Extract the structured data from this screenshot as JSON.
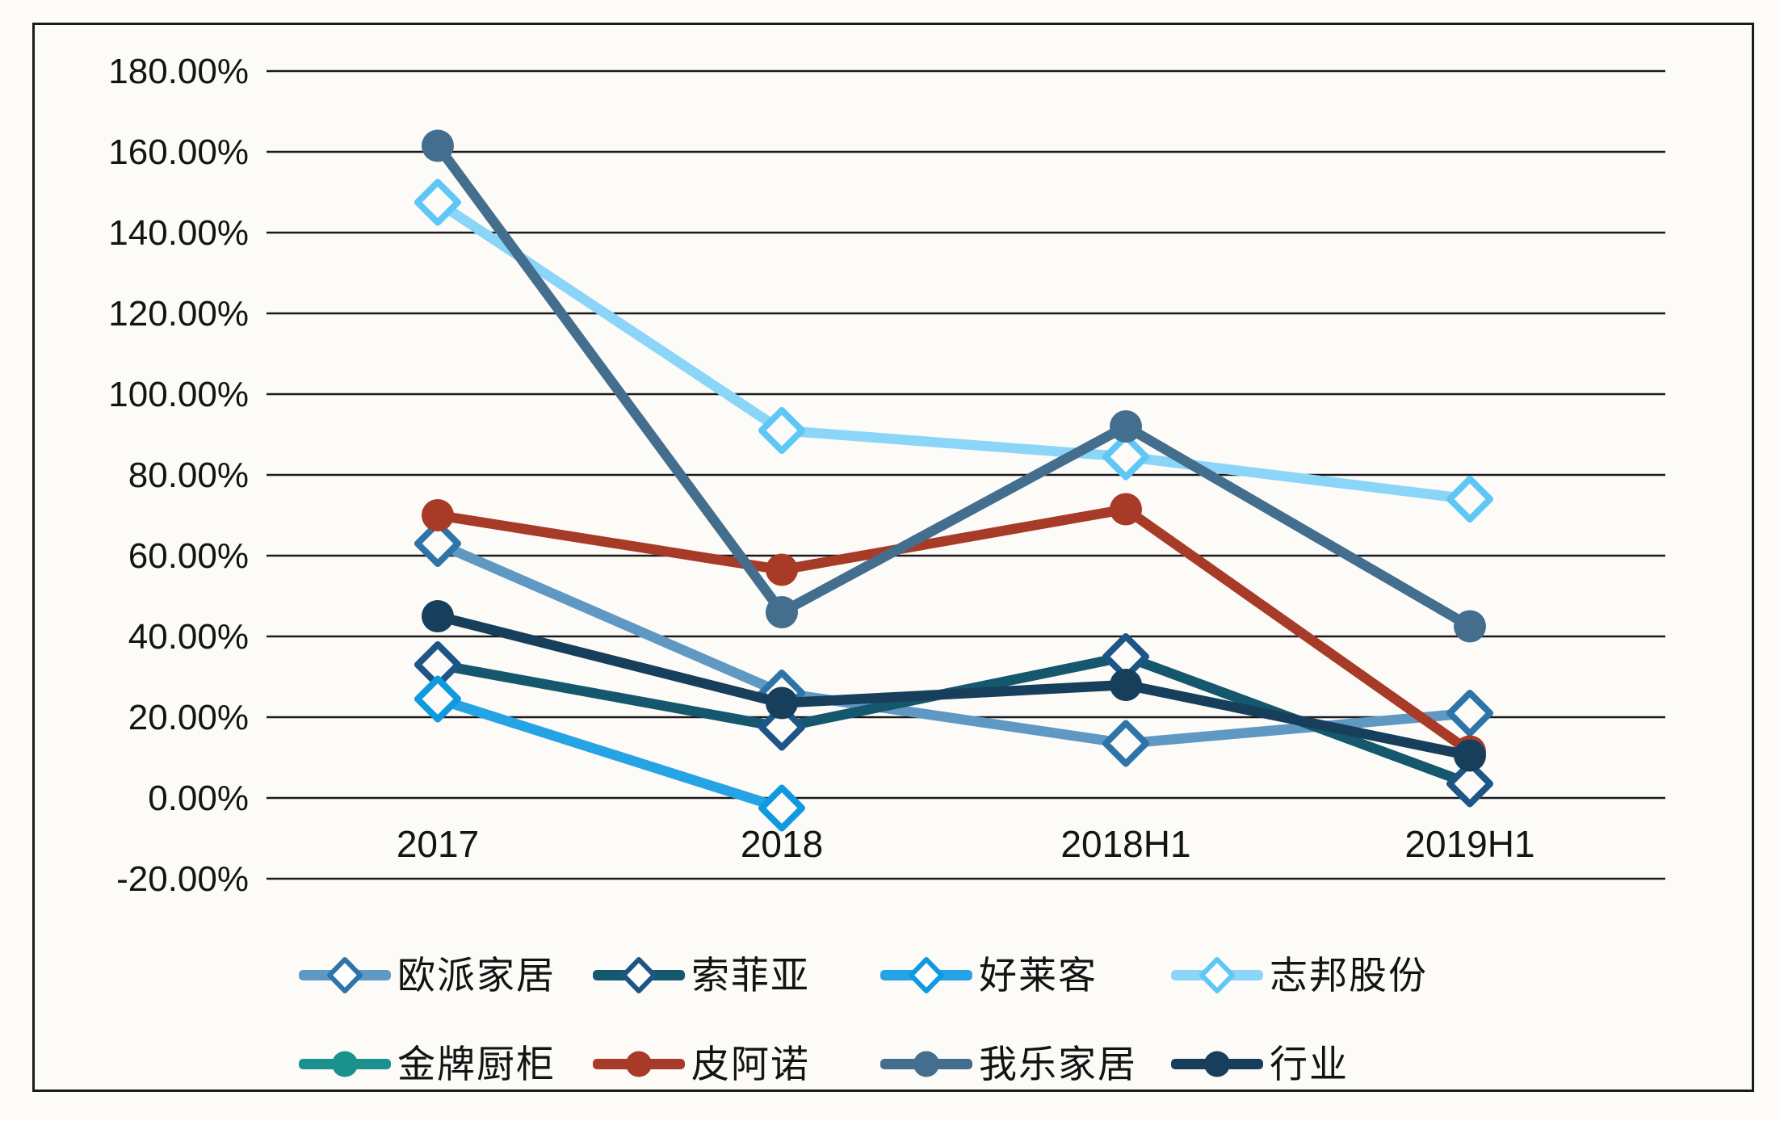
{
  "chart_data": {
    "type": "line",
    "title": "",
    "categories": [
      "2017",
      "2018",
      "2018H1",
      "2019H1"
    ],
    "y_axis": {
      "min": -20,
      "max": 180,
      "step": 20,
      "tick_labels": [
        "180.00%",
        "160.00%",
        "140.00%",
        "120.00%",
        "100.00%",
        "80.00%",
        "60.00%",
        "40.00%",
        "20.00%",
        "0.00%",
        "-20.00%"
      ]
    },
    "grid": true,
    "legend_position": "bottom-two-rows",
    "colors": {
      "grid": "#1a1a1a",
      "frame": "#1b1b1b",
      "text": "#141414",
      "background": "#fcfbf8"
    },
    "series": [
      {
        "name": "欧派家居",
        "marker": "diamond-open",
        "color": "#5f98c2",
        "marker_color": "#2e74a8",
        "values": [
          63,
          26,
          13.5,
          21
        ]
      },
      {
        "name": "索菲亚",
        "marker": "diamond-open",
        "color": "#15586e",
        "marker_color": "#1d5586",
        "values": [
          33,
          17.5,
          35,
          3.5
        ]
      },
      {
        "name": "好莱客",
        "marker": "diamond-open",
        "color": "#25a3e4",
        "marker_color": "#0f9ae0",
        "values": [
          24.5,
          -2.5,
          null,
          null
        ]
      },
      {
        "name": "志邦股份",
        "marker": "diamond-open",
        "color": "#8bd5f8",
        "marker_color": "#5ec7f5",
        "values": [
          147.5,
          91,
          84.5,
          74
        ]
      },
      {
        "name": "金牌厨柜",
        "marker": "circle-filled",
        "color": "#1a918c",
        "marker_color": "#1a918c",
        "values": [
          null,
          null,
          null,
          null
        ]
      },
      {
        "name": "皮阿诺",
        "marker": "circle-filled",
        "color": "#a83b27",
        "marker_color": "#a83b27",
        "values": [
          70,
          56.5,
          71.5,
          11.5
        ]
      },
      {
        "name": "我乐家居",
        "marker": "circle-filled",
        "color": "#446e8e",
        "marker_color": "#446e8e",
        "values": [
          161.5,
          46,
          92,
          42.5
        ]
      },
      {
        "name": "行业",
        "marker": "circle-filled",
        "color": "#173f5c",
        "marker_color": "#173f5c",
        "values": [
          45,
          23.5,
          28,
          10.5
        ]
      }
    ]
  }
}
